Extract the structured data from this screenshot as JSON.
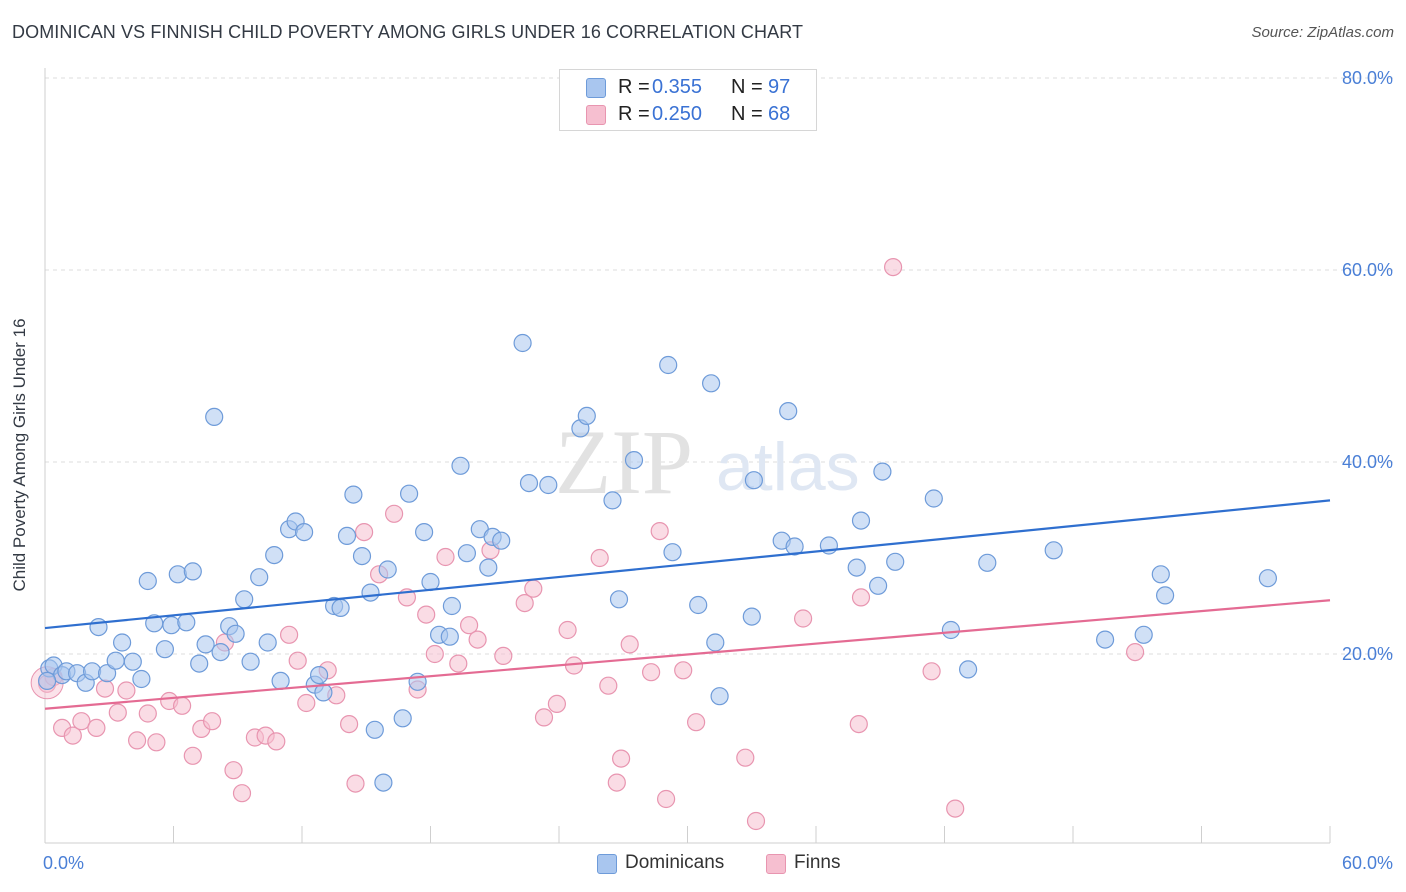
{
  "header": {
    "title": "DOMINICAN VS FINNISH CHILD POVERTY AMONG GIRLS UNDER 16 CORRELATION CHART",
    "source": "Source: ZipAtlas.com"
  },
  "watermark": {
    "zip": "ZIP",
    "atlas": "atlas"
  },
  "legend": {
    "r_label": "R =",
    "n_label": "N =",
    "series": [
      {
        "name": "Dominicans",
        "r": "0.355",
        "n": "97"
      },
      {
        "name": "Finns",
        "r": "0.250",
        "n": "68"
      }
    ]
  },
  "colors": {
    "dominicans_fill": "#a9c6ef",
    "dominicans_stroke": "#6e9bd9",
    "dominicans_line": "#2f6fcf",
    "finns_fill": "#f6bfd0",
    "finns_stroke": "#e895b0",
    "finns_line": "#e46b93",
    "tick_label": "#4a7fd6",
    "grid": "#dddddd"
  },
  "chart_data": {
    "type": "scatter",
    "title": "DOMINICAN VS FINNISH CHILD POVERTY AMONG GIRLS UNDER 16 CORRELATION CHART",
    "ylabel": "Child Poverty Among Girls Under 16",
    "xlim": [
      0,
      60
    ],
    "ylim": [
      0,
      80
    ],
    "x_tick_labels": [
      "0.0%",
      "60.0%"
    ],
    "y_ticks": [
      20,
      40,
      60,
      80
    ],
    "y_tick_labels": [
      "20.0%",
      "40.0%",
      "60.0%",
      "80.0%"
    ],
    "grid": true,
    "legend_placement": "top-center",
    "series": [
      {
        "name": "Dominicans",
        "trend": {
          "x": [
            0,
            60
          ],
          "y": [
            22.7,
            36.0
          ]
        },
        "points": [
          [
            0.2,
            18.5
          ],
          [
            0.4,
            18.8
          ],
          [
            0.8,
            17.8
          ],
          [
            1.0,
            18.2
          ],
          [
            1.5,
            18.0
          ],
          [
            1.9,
            17.0
          ],
          [
            2.2,
            18.2
          ],
          [
            2.5,
            22.8
          ],
          [
            2.9,
            18.0
          ],
          [
            3.3,
            19.3
          ],
          [
            3.6,
            21.2
          ],
          [
            4.1,
            19.2
          ],
          [
            4.5,
            17.4
          ],
          [
            4.8,
            27.6
          ],
          [
            5.1,
            23.2
          ],
          [
            5.6,
            20.5
          ],
          [
            5.9,
            23.0
          ],
          [
            6.2,
            28.3
          ],
          [
            6.6,
            23.3
          ],
          [
            6.9,
            28.6
          ],
          [
            7.2,
            19.0
          ],
          [
            7.5,
            21.0
          ],
          [
            7.9,
            44.7
          ],
          [
            8.2,
            20.2
          ],
          [
            8.6,
            22.9
          ],
          [
            8.9,
            22.1
          ],
          [
            9.3,
            25.7
          ],
          [
            9.6,
            19.2
          ],
          [
            10.0,
            28.0
          ],
          [
            10.4,
            21.2
          ],
          [
            10.7,
            30.3
          ],
          [
            11.0,
            17.2
          ],
          [
            11.4,
            33.0
          ],
          [
            11.7,
            33.8
          ],
          [
            12.1,
            32.7
          ],
          [
            12.6,
            16.8
          ],
          [
            13.0,
            16.0
          ],
          [
            12.8,
            17.8
          ],
          [
            13.5,
            25.0
          ],
          [
            13.8,
            24.8
          ],
          [
            14.1,
            32.3
          ],
          [
            14.4,
            36.6
          ],
          [
            14.8,
            30.2
          ],
          [
            15.2,
            26.4
          ],
          [
            15.4,
            12.1
          ],
          [
            15.8,
            6.6
          ],
          [
            16.0,
            28.8
          ],
          [
            16.7,
            13.3
          ],
          [
            17.0,
            36.7
          ],
          [
            17.4,
            17.1
          ],
          [
            17.7,
            32.7
          ],
          [
            18.0,
            27.5
          ],
          [
            18.4,
            22.0
          ],
          [
            19.0,
            25.0
          ],
          [
            18.9,
            21.8
          ],
          [
            19.4,
            39.6
          ],
          [
            19.7,
            30.5
          ],
          [
            20.3,
            33.0
          ],
          [
            20.7,
            29.0
          ],
          [
            20.9,
            32.2
          ],
          [
            21.3,
            31.8
          ],
          [
            22.3,
            52.4
          ],
          [
            22.6,
            37.8
          ],
          [
            23.5,
            37.6
          ],
          [
            25.0,
            43.5
          ],
          [
            25.3,
            44.8
          ],
          [
            26.5,
            36.0
          ],
          [
            26.8,
            25.7
          ],
          [
            27.5,
            40.2
          ],
          [
            29.1,
            50.1
          ],
          [
            29.3,
            30.6
          ],
          [
            30.5,
            25.1
          ],
          [
            31.1,
            48.2
          ],
          [
            31.3,
            21.2
          ],
          [
            31.5,
            15.6
          ],
          [
            33.0,
            23.9
          ],
          [
            33.1,
            38.1
          ],
          [
            34.4,
            31.8
          ],
          [
            34.7,
            45.3
          ],
          [
            35.0,
            31.2
          ],
          [
            36.6,
            31.3
          ],
          [
            37.9,
            29.0
          ],
          [
            38.1,
            33.9
          ],
          [
            38.9,
            27.1
          ],
          [
            39.1,
            39.0
          ],
          [
            39.7,
            29.6
          ],
          [
            41.5,
            36.2
          ],
          [
            42.3,
            22.5
          ],
          [
            43.1,
            18.4
          ],
          [
            44.0,
            29.5
          ],
          [
            47.1,
            30.8
          ],
          [
            49.5,
            21.5
          ],
          [
            51.3,
            22.0
          ],
          [
            52.1,
            28.3
          ],
          [
            52.3,
            26.1
          ],
          [
            57.1,
            27.9
          ],
          [
            0.1,
            17.2
          ]
        ]
      },
      {
        "name": "Finns",
        "trend": {
          "x": [
            0,
            60
          ],
          "y": [
            14.3,
            25.6
          ]
        },
        "points": [
          [
            0.1,
            16.9
          ],
          [
            0.8,
            12.3
          ],
          [
            1.3,
            11.5
          ],
          [
            1.7,
            13.0
          ],
          [
            2.4,
            12.3
          ],
          [
            2.8,
            16.4
          ],
          [
            3.4,
            13.9
          ],
          [
            3.8,
            16.2
          ],
          [
            4.3,
            11.0
          ],
          [
            4.8,
            13.8
          ],
          [
            5.2,
            10.8
          ],
          [
            5.8,
            15.1
          ],
          [
            6.4,
            14.6
          ],
          [
            6.9,
            9.4
          ],
          [
            7.3,
            12.2
          ],
          [
            7.8,
            13.0
          ],
          [
            8.4,
            21.2
          ],
          [
            8.8,
            7.9
          ],
          [
            9.2,
            5.5
          ],
          [
            9.8,
            11.3
          ],
          [
            10.3,
            11.5
          ],
          [
            10.8,
            10.9
          ],
          [
            11.4,
            22.0
          ],
          [
            11.8,
            19.3
          ],
          [
            12.2,
            14.9
          ],
          [
            13.2,
            18.3
          ],
          [
            13.6,
            15.7
          ],
          [
            14.2,
            12.7
          ],
          [
            14.5,
            6.5
          ],
          [
            14.9,
            32.7
          ],
          [
            15.6,
            28.3
          ],
          [
            16.3,
            34.6
          ],
          [
            16.9,
            25.9
          ],
          [
            17.4,
            16.3
          ],
          [
            17.8,
            24.1
          ],
          [
            18.2,
            20.0
          ],
          [
            18.7,
            30.1
          ],
          [
            19.3,
            19.0
          ],
          [
            19.8,
            23.0
          ],
          [
            20.2,
            21.5
          ],
          [
            20.8,
            30.8
          ],
          [
            21.4,
            19.8
          ],
          [
            22.4,
            25.3
          ],
          [
            22.8,
            26.8
          ],
          [
            23.3,
            13.4
          ],
          [
            23.9,
            14.8
          ],
          [
            24.4,
            22.5
          ],
          [
            24.7,
            18.8
          ],
          [
            25.9,
            30.0
          ],
          [
            26.3,
            16.7
          ],
          [
            26.7,
            6.6
          ],
          [
            26.9,
            9.1
          ],
          [
            27.3,
            21.0
          ],
          [
            28.3,
            18.1
          ],
          [
            28.7,
            32.8
          ],
          [
            29.0,
            4.9
          ],
          [
            29.8,
            18.3
          ],
          [
            30.4,
            12.9
          ],
          [
            32.7,
            9.2
          ],
          [
            33.2,
            2.6
          ],
          [
            35.4,
            23.7
          ],
          [
            38.0,
            12.7
          ],
          [
            38.1,
            25.9
          ],
          [
            39.6,
            60.3
          ],
          [
            41.4,
            18.2
          ],
          [
            42.5,
            3.9
          ],
          [
            50.9,
            20.2
          ],
          [
            0.4,
            17.6
          ]
        ]
      }
    ]
  }
}
